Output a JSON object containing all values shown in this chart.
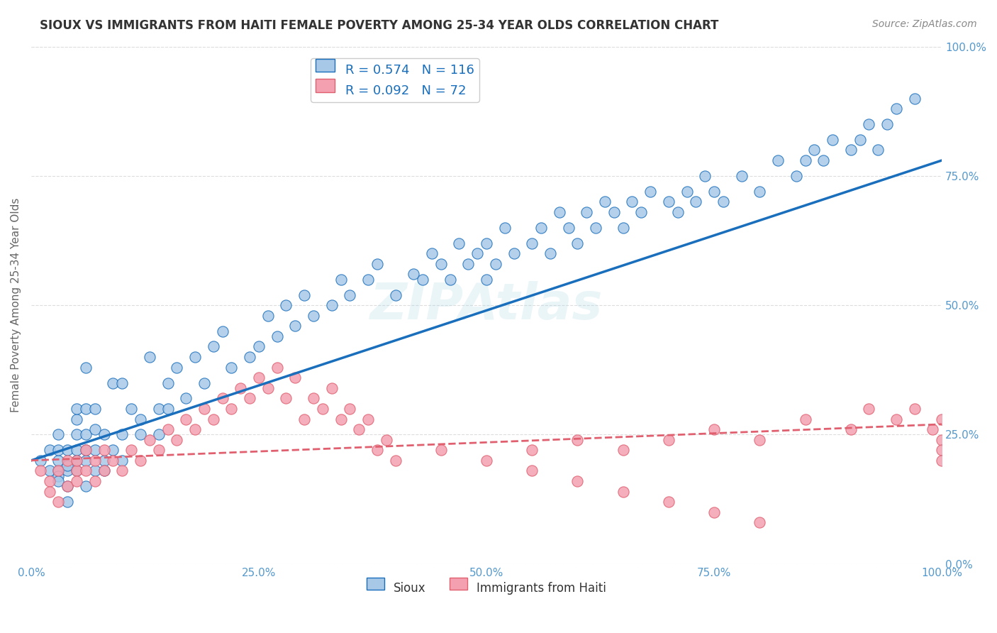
{
  "title": "SIOUX VS IMMIGRANTS FROM HAITI FEMALE POVERTY AMONG 25-34 YEAR OLDS CORRELATION CHART",
  "source": "Source: ZipAtlas.com",
  "ylabel": "Female Poverty Among 25-34 Year Olds",
  "xlabel": "",
  "watermark": "ZIPAtlas",
  "legend_entry1": "R = 0.574   N = 116",
  "legend_entry2": "R = 0.092   N = 72",
  "legend_label1": "Sioux",
  "legend_label2": "Immigrants from Haiti",
  "sioux_color": "#a8c8e8",
  "haiti_color": "#f4a0b0",
  "trendline1_color": "#1a6fbd",
  "trendline2_color": "#e06070",
  "background": "#ffffff",
  "grid_color": "#dddddd",
  "axis_label_color": "#5599cc",
  "ytick_labels": [
    "0.0%",
    "25.0%",
    "50.0%",
    "75.0%",
    "100.0%"
  ],
  "ytick_values": [
    0,
    25,
    50,
    75,
    100
  ],
  "xtick_labels": [
    "0.0%",
    "25.0%",
    "50.0%",
    "75.0%",
    "100.0%"
  ],
  "xtick_values": [
    0,
    25,
    50,
    75,
    100
  ],
  "sioux_x": [
    1,
    2,
    2,
    3,
    3,
    3,
    3,
    3,
    3,
    4,
    4,
    4,
    4,
    4,
    5,
    5,
    5,
    5,
    5,
    5,
    6,
    6,
    6,
    6,
    6,
    6,
    7,
    7,
    7,
    7,
    8,
    8,
    8,
    9,
    9,
    10,
    10,
    10,
    11,
    12,
    12,
    13,
    14,
    14,
    15,
    15,
    16,
    17,
    18,
    19,
    20,
    21,
    22,
    24,
    25,
    26,
    27,
    28,
    29,
    30,
    31,
    33,
    34,
    35,
    37,
    38,
    40,
    42,
    43,
    44,
    45,
    46,
    47,
    48,
    49,
    50,
    50,
    51,
    52,
    53,
    55,
    56,
    57,
    58,
    59,
    60,
    61,
    62,
    63,
    64,
    65,
    66,
    67,
    68,
    70,
    71,
    72,
    73,
    74,
    75,
    76,
    78,
    80,
    82,
    84,
    85,
    86,
    87,
    88,
    90,
    91,
    92,
    93,
    94,
    95,
    97
  ],
  "sioux_y": [
    20,
    22,
    18,
    25,
    18,
    17,
    20,
    22,
    16,
    15,
    22,
    18,
    12,
    19,
    28,
    20,
    30,
    22,
    18,
    25,
    30,
    20,
    38,
    22,
    25,
    15,
    22,
    26,
    18,
    30,
    20,
    25,
    18,
    35,
    22,
    20,
    35,
    25,
    30,
    28,
    25,
    40,
    30,
    25,
    35,
    30,
    38,
    32,
    40,
    35,
    42,
    45,
    38,
    40,
    42,
    48,
    44,
    50,
    46,
    52,
    48,
    50,
    55,
    52,
    55,
    58,
    52,
    56,
    55,
    60,
    58,
    55,
    62,
    58,
    60,
    55,
    62,
    58,
    65,
    60,
    62,
    65,
    60,
    68,
    65,
    62,
    68,
    65,
    70,
    68,
    65,
    70,
    68,
    72,
    70,
    68,
    72,
    70,
    75,
    72,
    70,
    75,
    72,
    78,
    75,
    78,
    80,
    78,
    82,
    80,
    82,
    85,
    80,
    85,
    88,
    90
  ],
  "haiti_x": [
    1,
    2,
    2,
    3,
    3,
    4,
    4,
    5,
    5,
    5,
    6,
    6,
    7,
    7,
    8,
    8,
    9,
    10,
    11,
    12,
    13,
    14,
    15,
    16,
    17,
    18,
    19,
    20,
    21,
    22,
    23,
    24,
    25,
    26,
    27,
    28,
    29,
    30,
    31,
    32,
    33,
    34,
    35,
    36,
    37,
    38,
    39,
    40,
    45,
    50,
    55,
    60,
    65,
    70,
    75,
    80,
    85,
    90,
    92,
    95,
    97,
    99,
    100,
    100,
    100,
    100,
    55,
    60,
    65,
    70,
    75,
    80
  ],
  "haiti_y": [
    18,
    16,
    14,
    18,
    12,
    20,
    15,
    18,
    16,
    20,
    22,
    18,
    20,
    16,
    18,
    22,
    20,
    18,
    22,
    20,
    24,
    22,
    26,
    24,
    28,
    26,
    30,
    28,
    32,
    30,
    34,
    32,
    36,
    34,
    38,
    32,
    36,
    28,
    32,
    30,
    34,
    28,
    30,
    26,
    28,
    22,
    24,
    20,
    22,
    20,
    22,
    24,
    22,
    24,
    26,
    24,
    28,
    26,
    30,
    28,
    30,
    26,
    28,
    24,
    22,
    20,
    18,
    16,
    14,
    12,
    10,
    8
  ],
  "trendline1_x": [
    0,
    100
  ],
  "trendline1_y": [
    20,
    78
  ],
  "trendline2_x": [
    0,
    100
  ],
  "trendline2_y": [
    20,
    27
  ]
}
